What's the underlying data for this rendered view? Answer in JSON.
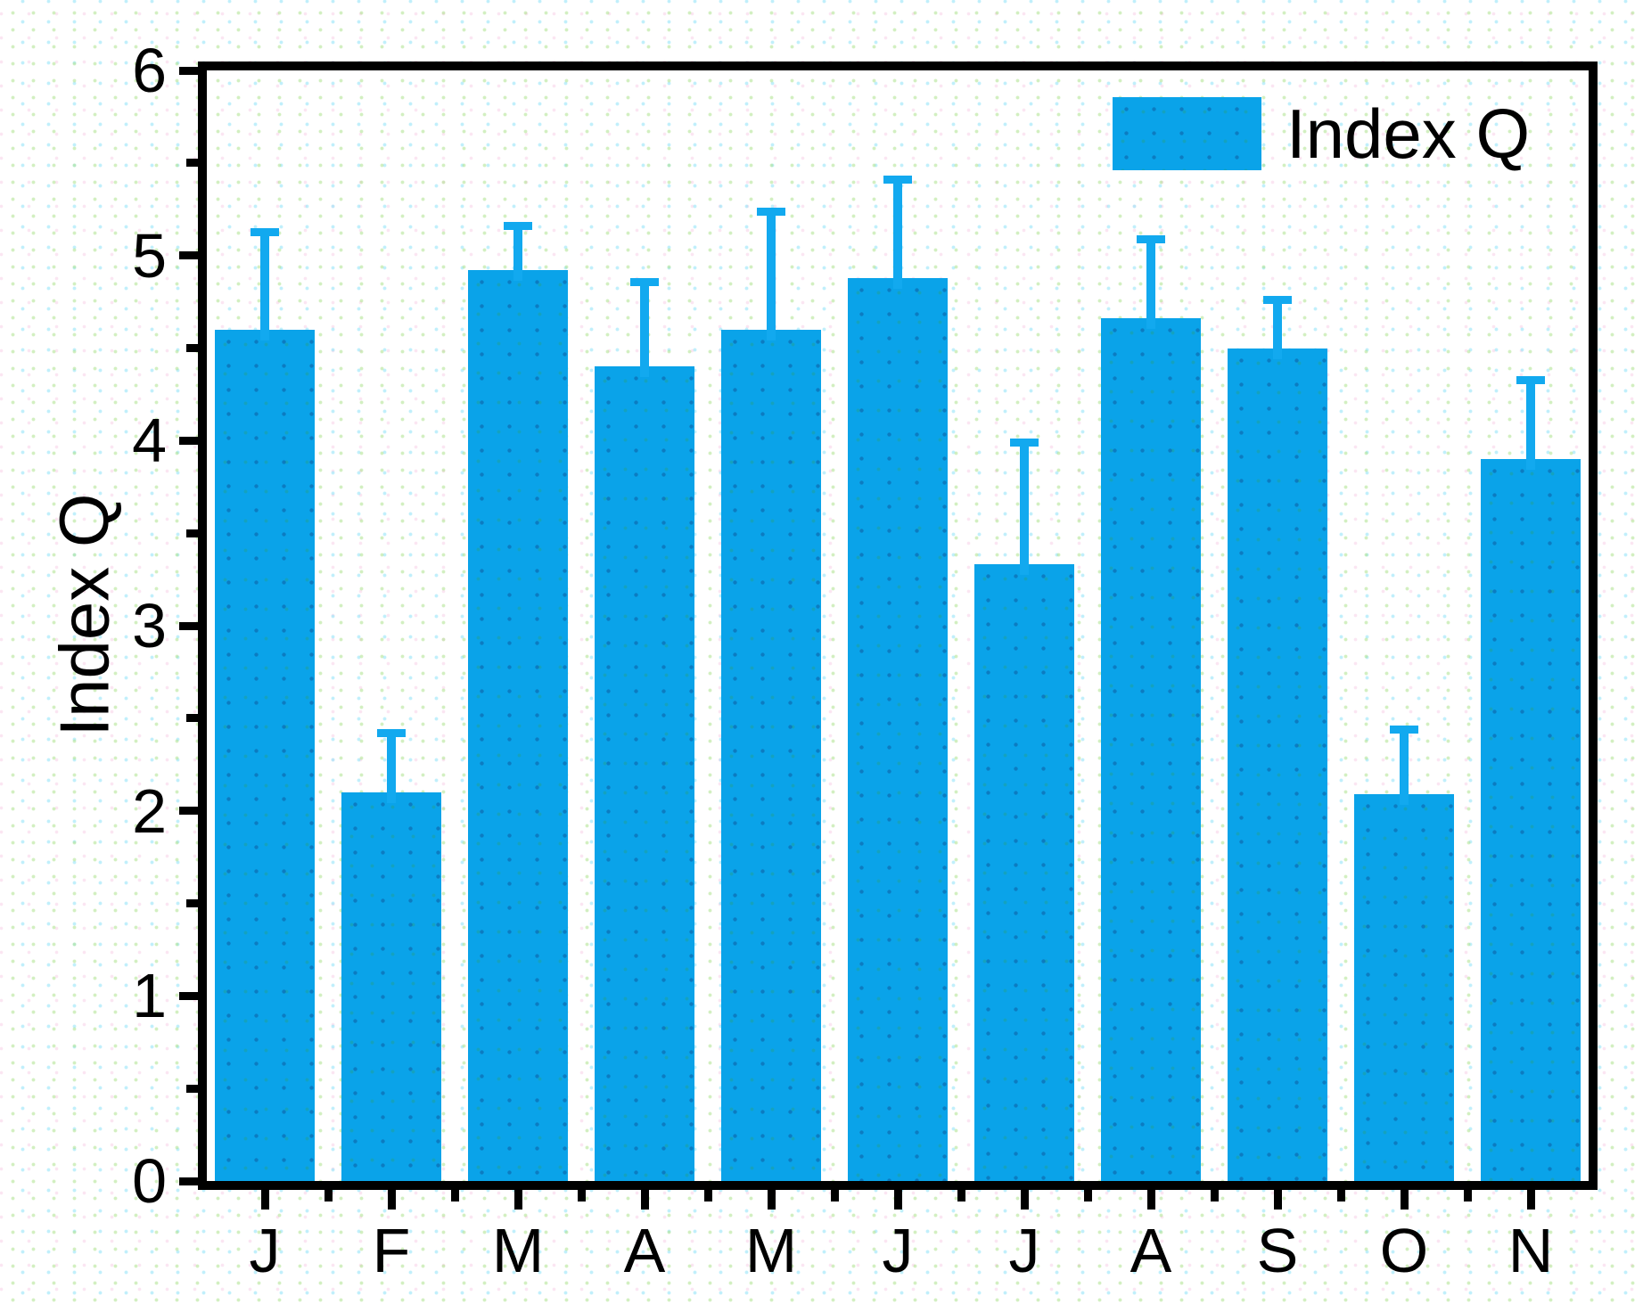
{
  "chart_data": {
    "type": "bar",
    "title": "",
    "ylabel": "Index Q",
    "xlabel": "",
    "legend": {
      "label": "Index Q",
      "position": "top-right"
    },
    "categories": [
      "J",
      "F",
      "M",
      "A",
      "M",
      "J",
      "J",
      "A",
      "S",
      "O",
      "N"
    ],
    "series": [
      {
        "name": "Index Q",
        "values": [
          4.6,
          2.1,
          4.92,
          4.4,
          4.6,
          4.88,
          3.33,
          4.66,
          4.5,
          2.09,
          3.9
        ],
        "error_plus": [
          0.55,
          0.34,
          0.26,
          0.48,
          0.66,
          0.55,
          0.68,
          0.45,
          0.28,
          0.37,
          0.45
        ]
      }
    ],
    "ylim": [
      0,
      6
    ],
    "yticks": [
      0,
      1,
      2,
      3,
      4,
      5,
      6
    ],
    "y_minor_step": 0.5,
    "grid": false,
    "colors": {
      "bar": "#0aa3e9",
      "error_bar": "#12a9ef",
      "axis": "#000000",
      "text": "#000000",
      "background": "#ffffff"
    }
  }
}
